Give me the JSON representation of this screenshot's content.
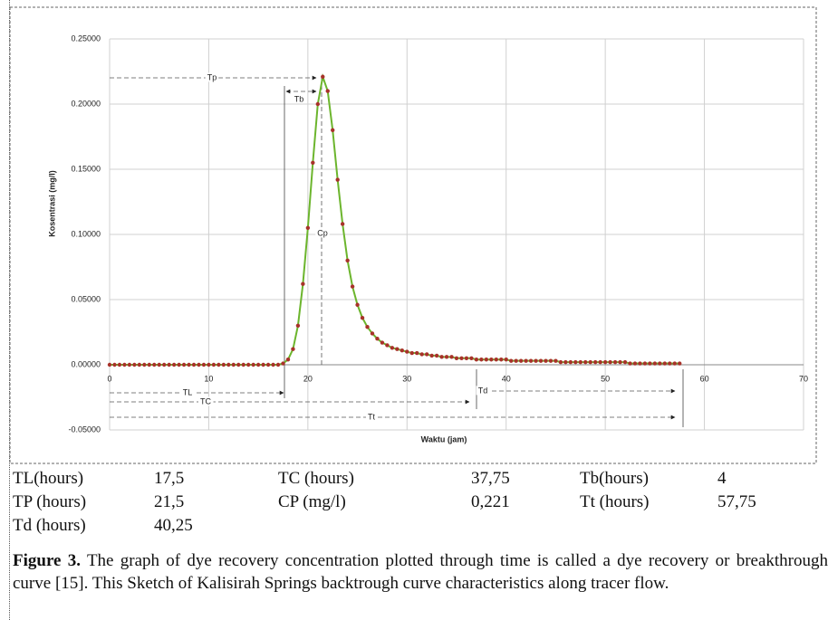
{
  "chart_data": {
    "type": "line",
    "x_label": "Waktu (jam)",
    "y_label": "Kosentrasi (mg/l)",
    "xlim": [
      0,
      70
    ],
    "xticks": [
      0,
      10,
      20,
      30,
      40,
      50,
      60,
      70
    ],
    "ylim": [
      -0.05,
      0.25
    ],
    "yticks": [
      {
        "value": -0.05,
        "label": "-0.05000"
      },
      {
        "value": 0,
        "label": "0.00000"
      },
      {
        "value": 0.05,
        "label": "0.05000"
      },
      {
        "value": 0.1,
        "label": "0.10000"
      },
      {
        "value": 0.15,
        "label": "0.15000"
      },
      {
        "value": 0.2,
        "label": "0.20000"
      },
      {
        "value": 0.25,
        "label": "0.25000"
      }
    ],
    "grid": true,
    "line_color": "#6cb52d",
    "marker_color": "#a8322a",
    "x": [
      0,
      0.5,
      1,
      1.5,
      2,
      2.5,
      3,
      3.5,
      4,
      4.5,
      5,
      5.5,
      6,
      6.5,
      7,
      7.5,
      8,
      8.5,
      9,
      9.5,
      10,
      10.5,
      11,
      11.5,
      12,
      12.5,
      13,
      13.5,
      14,
      14.5,
      15,
      15.5,
      16,
      16.5,
      17,
      17.5,
      18,
      18.5,
      19,
      19.5,
      20,
      20.5,
      21,
      21.5,
      22,
      22.5,
      23,
      23.5,
      24,
      24.5,
      25,
      25.5,
      26,
      26.5,
      27,
      27.5,
      28,
      28.5,
      29,
      29.5,
      30,
      30.5,
      31,
      31.5,
      32,
      32.5,
      33,
      33.5,
      34,
      34.5,
      35,
      35.5,
      36,
      36.5,
      37,
      37.5,
      38,
      38.5,
      39,
      39.5,
      40,
      40.5,
      41,
      41.5,
      42,
      42.5,
      43,
      43.5,
      44,
      44.5,
      45,
      45.5,
      46,
      46.5,
      47,
      47.5,
      48,
      48.5,
      49,
      49.5,
      50,
      50.5,
      51,
      51.5,
      52,
      52.5,
      53,
      53.5,
      54,
      54.5,
      55,
      55.5,
      56,
      56.5,
      57,
      57.5
    ],
    "values": [
      0,
      0,
      0,
      0,
      0,
      0,
      0,
      0,
      0,
      0,
      0,
      0,
      0,
      0,
      0,
      0,
      0,
      0,
      0,
      0,
      0,
      0,
      0,
      0,
      0,
      0,
      0,
      0,
      0,
      0,
      0,
      0,
      0,
      0,
      0,
      0.001,
      0.004,
      0.012,
      0.03,
      0.062,
      0.105,
      0.155,
      0.2,
      0.221,
      0.21,
      0.18,
      0.142,
      0.108,
      0.08,
      0.06,
      0.046,
      0.036,
      0.029,
      0.024,
      0.02,
      0.017,
      0.015,
      0.013,
      0.012,
      0.011,
      0.01,
      0.009,
      0.009,
      0.008,
      0.008,
      0.007,
      0.007,
      0.006,
      0.006,
      0.006,
      0.005,
      0.005,
      0.005,
      0.005,
      0.004,
      0.004,
      0.004,
      0.004,
      0.004,
      0.004,
      0.004,
      0.003,
      0.003,
      0.003,
      0.003,
      0.003,
      0.003,
      0.003,
      0.003,
      0.003,
      0.003,
      0.002,
      0.002,
      0.002,
      0.002,
      0.002,
      0.002,
      0.002,
      0.002,
      0.002,
      0.002,
      0.002,
      0.002,
      0.002,
      0.002,
      0.001,
      0.001,
      0.001,
      0.001,
      0.001,
      0.001,
      0.001,
      0.001,
      0.001,
      0.001,
      0.001
    ],
    "annotations": [
      "Tp",
      "Tb",
      "Cp",
      "TL",
      "TC",
      "Td",
      "Tt"
    ]
  },
  "table": {
    "rows": [
      [
        "TL(hours)",
        "17,5",
        "TC (hours)",
        "37,75",
        "Tb(hours)",
        "4"
      ],
      [
        "TP (hours)",
        "21,5",
        "CP (mg/l)",
        "0,221",
        "Tt (hours)",
        "57,75"
      ],
      [
        "Td (hours)",
        "40,25"
      ]
    ]
  },
  "caption": {
    "label": "Figure 3.",
    "text": "The graph of dye recovery concentration plotted through time is called a dye recovery or breakthrough curve [15]. This Sketch of Kalisirah Springs backtrough curve characteristics along tracer flow."
  }
}
